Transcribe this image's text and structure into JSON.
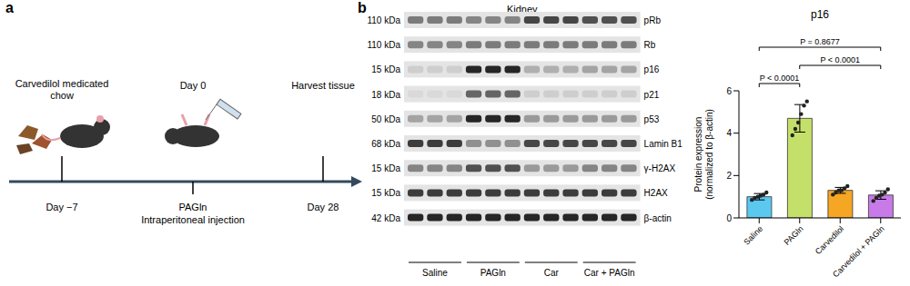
{
  "panel_a": {
    "label": "a",
    "timeline": [
      {
        "above": [
          "Carvedilol medicated",
          "chow"
        ],
        "below": [
          "Day −7"
        ]
      },
      {
        "above": [
          "Day 0"
        ],
        "below": [
          "PAGln",
          "Intraperitoneal injection"
        ]
      },
      {
        "above": [
          "Harvest tissue"
        ],
        "below": [
          "Day 28"
        ]
      }
    ]
  },
  "panel_b_blot": {
    "label": "b",
    "title": "Kidney",
    "groups": [
      "Saline",
      "PAGln",
      "Car",
      "Car + PAGln"
    ],
    "lanes_per_group": 3,
    "rows": [
      {
        "size": "110 kDa",
        "protein": "pRb",
        "intensity": [
          0.5,
          0.45,
          0.75,
          0.7
        ]
      },
      {
        "size": "110 kDa",
        "protein": "Rb",
        "intensity": [
          0.45,
          0.5,
          0.5,
          0.5
        ]
      },
      {
        "size": "15 kDa",
        "protein": "p16",
        "intensity": [
          0.1,
          0.9,
          0.25,
          0.3
        ]
      },
      {
        "size": "18 kDa",
        "protein": "p21",
        "intensity": [
          0.05,
          0.6,
          0.1,
          0.1
        ]
      },
      {
        "size": "50 kDa",
        "protein": "p53",
        "intensity": [
          0.3,
          0.9,
          0.35,
          0.35
        ]
      },
      {
        "size": "68 kDa",
        "protein": "Lamin B1",
        "intensity": [
          0.8,
          0.4,
          0.75,
          0.75
        ]
      },
      {
        "size": "15 kDa",
        "protein": "γ-H2AX",
        "intensity": [
          0.45,
          0.7,
          0.35,
          0.45
        ]
      },
      {
        "size": "15 kDa",
        "protein": "H2AX",
        "intensity": [
          0.8,
          0.8,
          0.8,
          0.8
        ]
      },
      {
        "size": "42 kDa",
        "protein": "β-actin",
        "intensity": [
          0.9,
          0.9,
          0.9,
          0.9
        ]
      }
    ]
  },
  "chart_data": {
    "type": "bar",
    "title": "p16",
    "y_label": [
      "Protein expression",
      "(normalized to β-actin)"
    ],
    "categories": [
      "Saline",
      "PAGln",
      "Carvedilol",
      "Carvedilol + PAGln"
    ],
    "values": [
      1.0,
      4.7,
      1.3,
      1.08
    ],
    "error": [
      0.15,
      0.65,
      0.14,
      0.2
    ],
    "points": [
      [
        0.85,
        0.95,
        1.0,
        1.05,
        1.1,
        1.2
      ],
      [
        3.9,
        4.2,
        4.5,
        4.9,
        5.3,
        5.5
      ],
      [
        1.1,
        1.2,
        1.3,
        1.3,
        1.4,
        1.5
      ],
      [
        0.8,
        0.95,
        1.05,
        1.1,
        1.2,
        1.35
      ]
    ],
    "colors": [
      "#5bc8f0",
      "#c5e06a",
      "#f5a623",
      "#c77ae8"
    ],
    "ylim": [
      0,
      6
    ],
    "yticks": [
      0,
      2,
      4,
      6
    ],
    "comparisons": [
      {
        "between": [
          "Saline",
          "Carvedilol + PAGln"
        ],
        "label": "P = 0.8677"
      },
      {
        "between": [
          "PAGln",
          "Carvedilol + PAGln"
        ],
        "label": "P < 0.0001"
      },
      {
        "between": [
          "Saline",
          "PAGln"
        ],
        "label": "P < 0.0001"
      }
    ]
  }
}
